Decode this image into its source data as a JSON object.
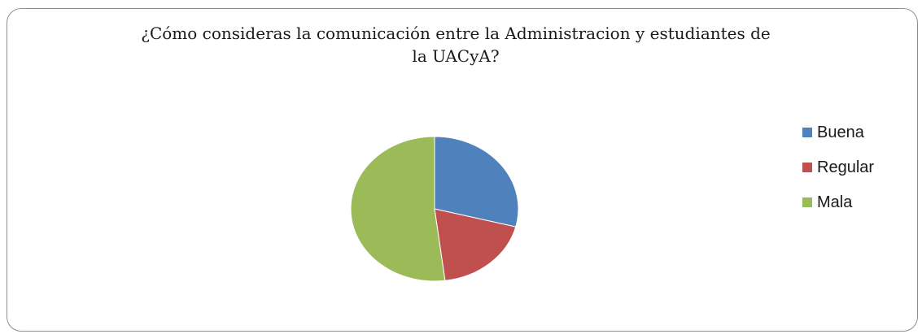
{
  "chart_data": {
    "type": "pie",
    "title_lines": [
      "¿Cómo consideras la comunicación entre la Administracion y estudiantes de",
      "la UACyA?"
    ],
    "categories": [
      "Buena",
      "Regular",
      "Mala"
    ],
    "values": [
      29,
      19,
      52
    ],
    "colors": [
      "#4f81bd",
      "#c0504d",
      "#9bbb59"
    ],
    "legend_position": "right"
  }
}
